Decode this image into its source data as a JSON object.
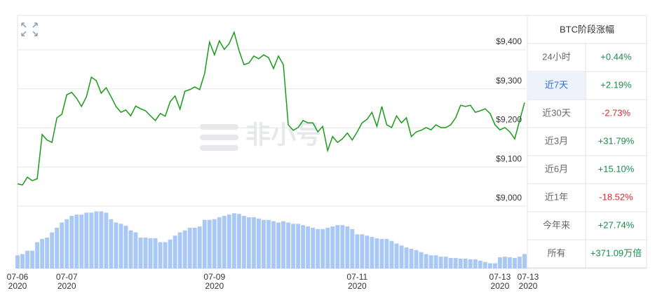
{
  "chart_data": {
    "type": "line",
    "categories": [
      "07-06 2020",
      null,
      null,
      null,
      null,
      null,
      null,
      null,
      null,
      null,
      "07-07 2020",
      null,
      null,
      null,
      null,
      null,
      null,
      null,
      null,
      null,
      null,
      null,
      null,
      null,
      null,
      null,
      null,
      null,
      null,
      null,
      null,
      null,
      null,
      null,
      null,
      null,
      null,
      null,
      null,
      null,
      "07-09 2020",
      null,
      null,
      null,
      null,
      null,
      null,
      null,
      null,
      null,
      null,
      null,
      null,
      null,
      null,
      null,
      null,
      null,
      null,
      null,
      null,
      null,
      null,
      null,
      null,
      null,
      null,
      null,
      null,
      "07-11 2020",
      null,
      null,
      null,
      null,
      null,
      null,
      null,
      null,
      null,
      null,
      null,
      null,
      null,
      null,
      null,
      null,
      null,
      null,
      null,
      null,
      null,
      null,
      null,
      null,
      null,
      null,
      null,
      null,
      "07-13 2020",
      null,
      null,
      null,
      null,
      "07-13 2020"
    ],
    "series": [
      {
        "name": "price",
        "color": "#1a9a1a",
        "values": [
          9057,
          9054,
          9074,
          9065,
          9070,
          9183,
          9169,
          9163,
          9226,
          9235,
          9285,
          9291,
          9276,
          9255,
          9280,
          9330,
          9321,
          9289,
          9303,
          9280,
          9255,
          9240,
          9246,
          9231,
          9256,
          9249,
          9244,
          9231,
          9219,
          9237,
          9230,
          9267,
          9282,
          9248,
          9294,
          9298,
          9305,
          9298,
          9339,
          9420,
          9387,
          9423,
          9401,
          9416,
          9445,
          9398,
          9362,
          9366,
          9384,
          9377,
          9387,
          9380,
          9352,
          9384,
          9362,
          9208,
          9194,
          9201,
          9219,
          9213,
          9213,
          9190,
          9204,
          9142,
          9178,
          9163,
          9172,
          9187,
          9169,
          9190,
          9213,
          9222,
          9240,
          9204,
          9255,
          9208,
          9201,
          9231,
          9213,
          9226,
          9178,
          9190,
          9194,
          9201,
          9195,
          9208,
          9201,
          9201,
          9208,
          9226,
          9258,
          9255,
          9258,
          9240,
          9244,
          9249,
          9237,
          9208,
          9195,
          9201,
          9190,
          9172,
          9219,
          9265
        ]
      },
      {
        "name": "volume",
        "color": "#a9c8f5",
        "axis": "y2",
        "values": [
          20,
          22,
          27,
          27,
          40,
          45,
          47,
          55,
          62,
          70,
          75,
          80,
          82,
          82,
          85,
          85,
          87,
          87,
          85,
          75,
          70,
          68,
          65,
          58,
          55,
          47,
          47,
          46,
          46,
          40,
          40,
          44,
          50,
          55,
          58,
          62,
          62,
          64,
          74,
          74,
          75,
          78,
          80,
          82,
          84,
          83,
          80,
          78,
          78,
          76,
          74,
          74,
          72,
          70,
          72,
          70,
          68,
          68,
          66,
          64,
          62,
          60,
          60,
          62,
          64,
          66,
          66,
          64,
          60,
          52,
          52,
          50,
          48,
          46,
          45,
          45,
          42,
          38,
          35,
          32,
          30,
          28,
          25,
          22,
          20,
          20,
          18,
          18,
          16,
          16,
          15,
          15,
          14,
          14,
          12,
          10,
          8,
          8,
          17,
          18,
          17,
          16,
          18,
          22
        ]
      }
    ],
    "ylim": [
      9000,
      9488
    ],
    "yticks": [
      {
        "value": 9000,
        "label": "$9,000"
      },
      {
        "value": 9100,
        "label": "$9,100"
      },
      {
        "value": 9200,
        "label": "$9,200"
      },
      {
        "value": 9300,
        "label": "$9,300"
      },
      {
        "value": 9400,
        "label": "$9,400"
      }
    ],
    "y2lim": [
      0,
      95
    ],
    "grid": true,
    "watermark": "非小号"
  },
  "table": {
    "title": "BTC阶段涨幅",
    "selected_row": 1,
    "rows": [
      {
        "label": "24小时",
        "value": "+0.44%",
        "color": "#1a8a4a"
      },
      {
        "label": "近7天",
        "value": "+2.19%",
        "color": "#1a8a4a"
      },
      {
        "label": "近30天",
        "value": "-2.73%",
        "color": "#d9282f"
      },
      {
        "label": "近3月",
        "value": "+31.79%",
        "color": "#1a8a4a"
      },
      {
        "label": "近6月",
        "value": "+15.10%",
        "color": "#1a8a4a"
      },
      {
        "label": "近1年",
        "value": "-18.52%",
        "color": "#d9282f"
      },
      {
        "label": "今年来",
        "value": "+27.74%",
        "color": "#1a8a4a"
      },
      {
        "label": "所有",
        "value": "+371.09万倍",
        "color": "#1a8a4a"
      }
    ]
  }
}
